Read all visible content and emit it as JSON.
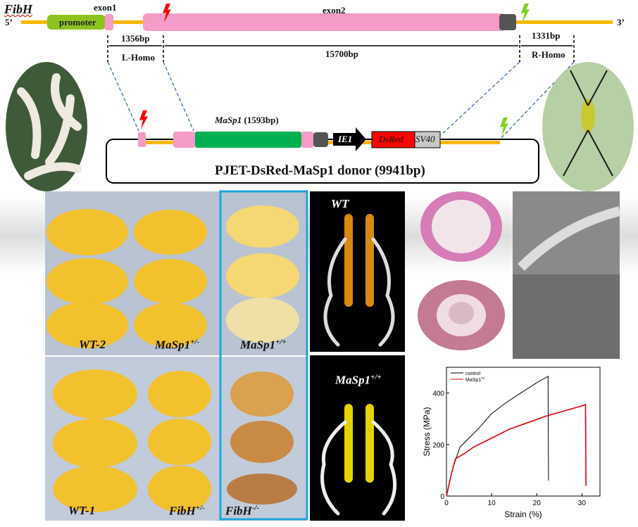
{
  "gene_map": {
    "gene": "FibH",
    "five_prime": "5’",
    "three_prime": "3’",
    "promoter": "promoter",
    "exon1": "exon1",
    "exon2": "exon2",
    "left_len": "1356bp",
    "left_name": "L-Homo",
    "mid_len": "15700bp",
    "right_len": "1331bp",
    "right_name": "R-Homo"
  },
  "donor": {
    "gene": "MaSp1",
    "gene_len": "(1593bp)",
    "ie1": "IE1",
    "dsred": "DsRed",
    "sv40": "SV40",
    "title": "PJET-DsRed-MaSp1 donor (9941bp)"
  },
  "colors": {
    "backbone": "#f5b800",
    "promoter": "#8dc21f",
    "exon": "#f59bc8",
    "masp1": "#00b050",
    "dsred": "#ff0000",
    "sv40": "#c8c8c8",
    "cut_left": "#ff0000",
    "cut_right": "#7ed321",
    "highlight_box": "#1ea5dc",
    "cocoon": "#f2c12e"
  },
  "cocoons": {
    "top_labels": [
      {
        "name": "WT-2",
        "sup": ""
      },
      {
        "name": "MaSp1",
        "sup": "+/-"
      },
      {
        "name": "MaSp1",
        "sup": "+/+"
      }
    ],
    "bottom_labels": [
      {
        "name": "WT-1",
        "sup": ""
      },
      {
        "name": "FibH",
        "sup": "+/-"
      },
      {
        "name": "FibH",
        "sup": "-/-"
      }
    ]
  },
  "glands": {
    "top": {
      "name": "WT",
      "sup": ""
    },
    "bottom": {
      "name": "MaSp1",
      "sup": "+/+"
    }
  },
  "chart_data": {
    "type": "line",
    "xlabel": "Strain (%)",
    "ylabel": "Stress (MPa)",
    "xlim": [
      0,
      34
    ],
    "ylim": [
      0,
      500
    ],
    "xticks": [
      0,
      10,
      20,
      30
    ],
    "yticks": [
      0,
      200,
      400
    ],
    "legend_position": "top-left",
    "grid": false,
    "series": [
      {
        "name": "control",
        "color": "#000000",
        "x": [
          0,
          1,
          2,
          3,
          5,
          7,
          10,
          13,
          16,
          20,
          22.5,
          22.6
        ],
        "y": [
          0,
          80,
          140,
          190,
          225,
          260,
          320,
          360,
          395,
          440,
          465,
          60
        ]
      },
      {
        "name": "MaSp1",
        "sup": "+/-",
        "color": "#e00000",
        "x": [
          0,
          1,
          2,
          4,
          6,
          10,
          14,
          18,
          22,
          26,
          30,
          30.8,
          30.9
        ],
        "y": [
          0,
          80,
          145,
          165,
          190,
          225,
          260,
          285,
          310,
          330,
          350,
          355,
          40
        ]
      }
    ]
  }
}
